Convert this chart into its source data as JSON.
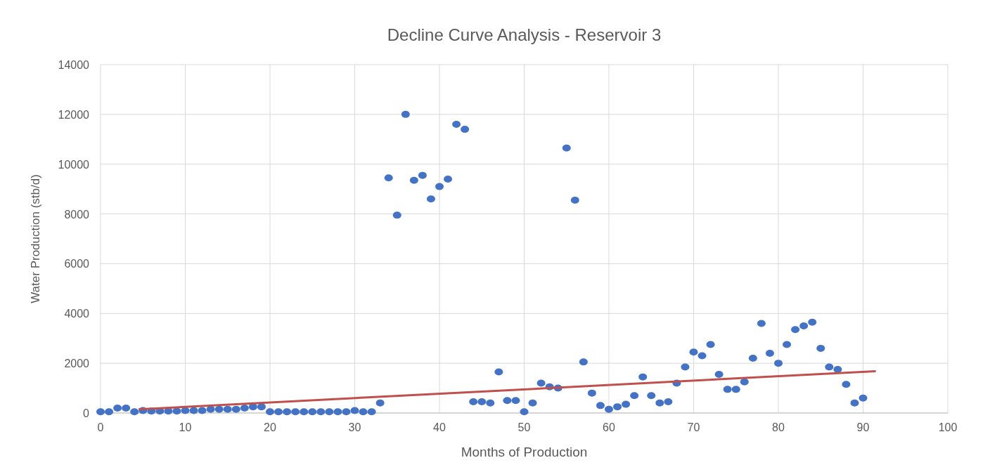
{
  "chart_data": {
    "type": "scatter",
    "title": "Decline Curve Analysis - Reservoir 3",
    "xlabel": "Months of Production",
    "ylabel": "Water Production (stb/d)",
    "xlim": [
      0,
      100
    ],
    "xticks": [
      0,
      10,
      20,
      30,
      40,
      50,
      60,
      70,
      80,
      90,
      100
    ],
    "ylim": [
      0,
      14000
    ],
    "yticks": [
      0,
      2000,
      4000,
      6000,
      8000,
      10000,
      12000,
      14000
    ],
    "grid": true,
    "marker": "circle",
    "x": [
      0,
      1,
      2,
      3,
      4,
      5,
      6,
      7,
      8,
      9,
      10,
      11,
      12,
      13,
      14,
      15,
      16,
      17,
      18,
      19,
      20,
      21,
      22,
      23,
      24,
      25,
      26,
      27,
      28,
      29,
      30,
      31,
      32,
      33,
      34,
      35,
      36,
      37,
      38,
      39,
      40,
      41,
      42,
      43,
      44,
      45,
      46,
      47,
      48,
      49,
      50,
      51,
      52,
      53,
      54,
      55,
      56,
      57,
      58,
      59,
      60,
      61,
      62,
      63,
      64,
      65,
      66,
      67,
      68,
      69,
      70,
      71,
      72,
      73,
      74,
      75,
      76,
      77,
      78,
      79,
      80,
      81,
      82,
      83,
      84,
      85,
      86,
      87,
      88,
      89,
      90
    ],
    "series": [
      {
        "color": "#4472c4",
        "values": [
          50,
          50,
          200,
          200,
          50,
          100,
          80,
          80,
          80,
          80,
          100,
          100,
          100,
          150,
          150,
          150,
          150,
          200,
          250,
          250,
          50,
          50,
          50,
          50,
          50,
          50,
          50,
          50,
          50,
          50,
          100,
          50,
          50,
          400,
          9450,
          7950,
          12000,
          9350,
          9550,
          8600,
          9100,
          9400,
          11600,
          11400,
          450,
          450,
          400,
          1650,
          500,
          500,
          50,
          400,
          1200,
          1050,
          1000,
          10650,
          8550,
          2050,
          800,
          300,
          150,
          250,
          350,
          700,
          1450,
          700,
          400,
          450,
          1200,
          1850,
          2450,
          2300,
          2750,
          1550,
          950,
          950,
          1250,
          2200,
          3600,
          2400,
          2000,
          2750,
          3350,
          3500,
          3650,
          2600,
          1850,
          1750,
          1150,
          400,
          600
        ]
      },
      {
        "type": "line",
        "color": "#c0504d",
        "x": [
          4.5,
          91.5
        ],
        "values": [
          150,
          1680
        ],
        "marker": "none"
      }
    ]
  }
}
